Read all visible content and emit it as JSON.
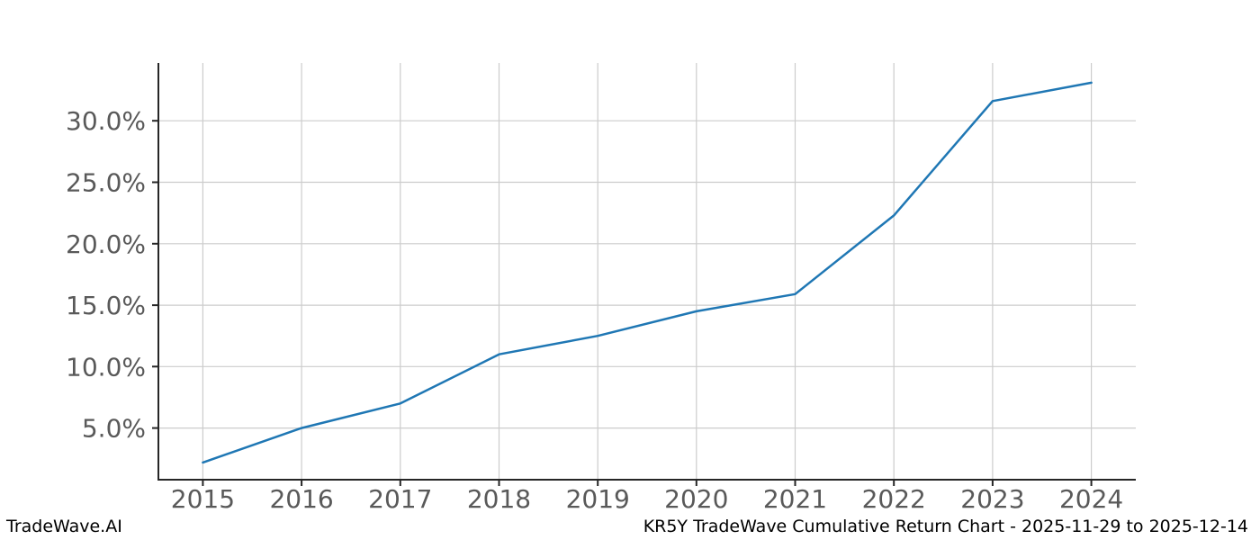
{
  "footer": {
    "brand": "TradeWave.AI",
    "title": "KR5Y TradeWave Cumulative Return Chart - 2025-11-29 to 2025-12-14"
  },
  "chart_data": {
    "type": "line",
    "title": "KR5Y TradeWave Cumulative Return Chart - 2025-11-29 to 2025-12-14",
    "x": [
      2015,
      2016,
      2017,
      2018,
      2019,
      2020,
      2021,
      2022,
      2023,
      2024
    ],
    "x_tick_labels": [
      "2015",
      "2016",
      "2017",
      "2018",
      "2019",
      "2020",
      "2021",
      "2022",
      "2023",
      "2024"
    ],
    "series": [
      {
        "name": "KR5Y cumulative return",
        "values": [
          2.2,
          5.0,
          7.0,
          11.0,
          12.5,
          14.5,
          15.9,
          22.3,
          31.6,
          33.1
        ],
        "color": "#1f77b4"
      }
    ],
    "unit": "%",
    "y_ticks": [
      5,
      10,
      15,
      20,
      25,
      30
    ],
    "y_tick_labels": [
      "5.0%",
      "10.0%",
      "15.0%",
      "20.0%",
      "25.0%",
      "30.0%"
    ],
    "xlim": [
      2014.55,
      2024.45
    ],
    "ylim": [
      0.8,
      34.7
    ],
    "grid": true,
    "legend": false,
    "colors": {
      "line": "#1f77b4",
      "grid": "#cccccc",
      "spine": "#262626",
      "tick_label": "#595959",
      "footer_text": "#000000",
      "background": "#ffffff"
    }
  }
}
